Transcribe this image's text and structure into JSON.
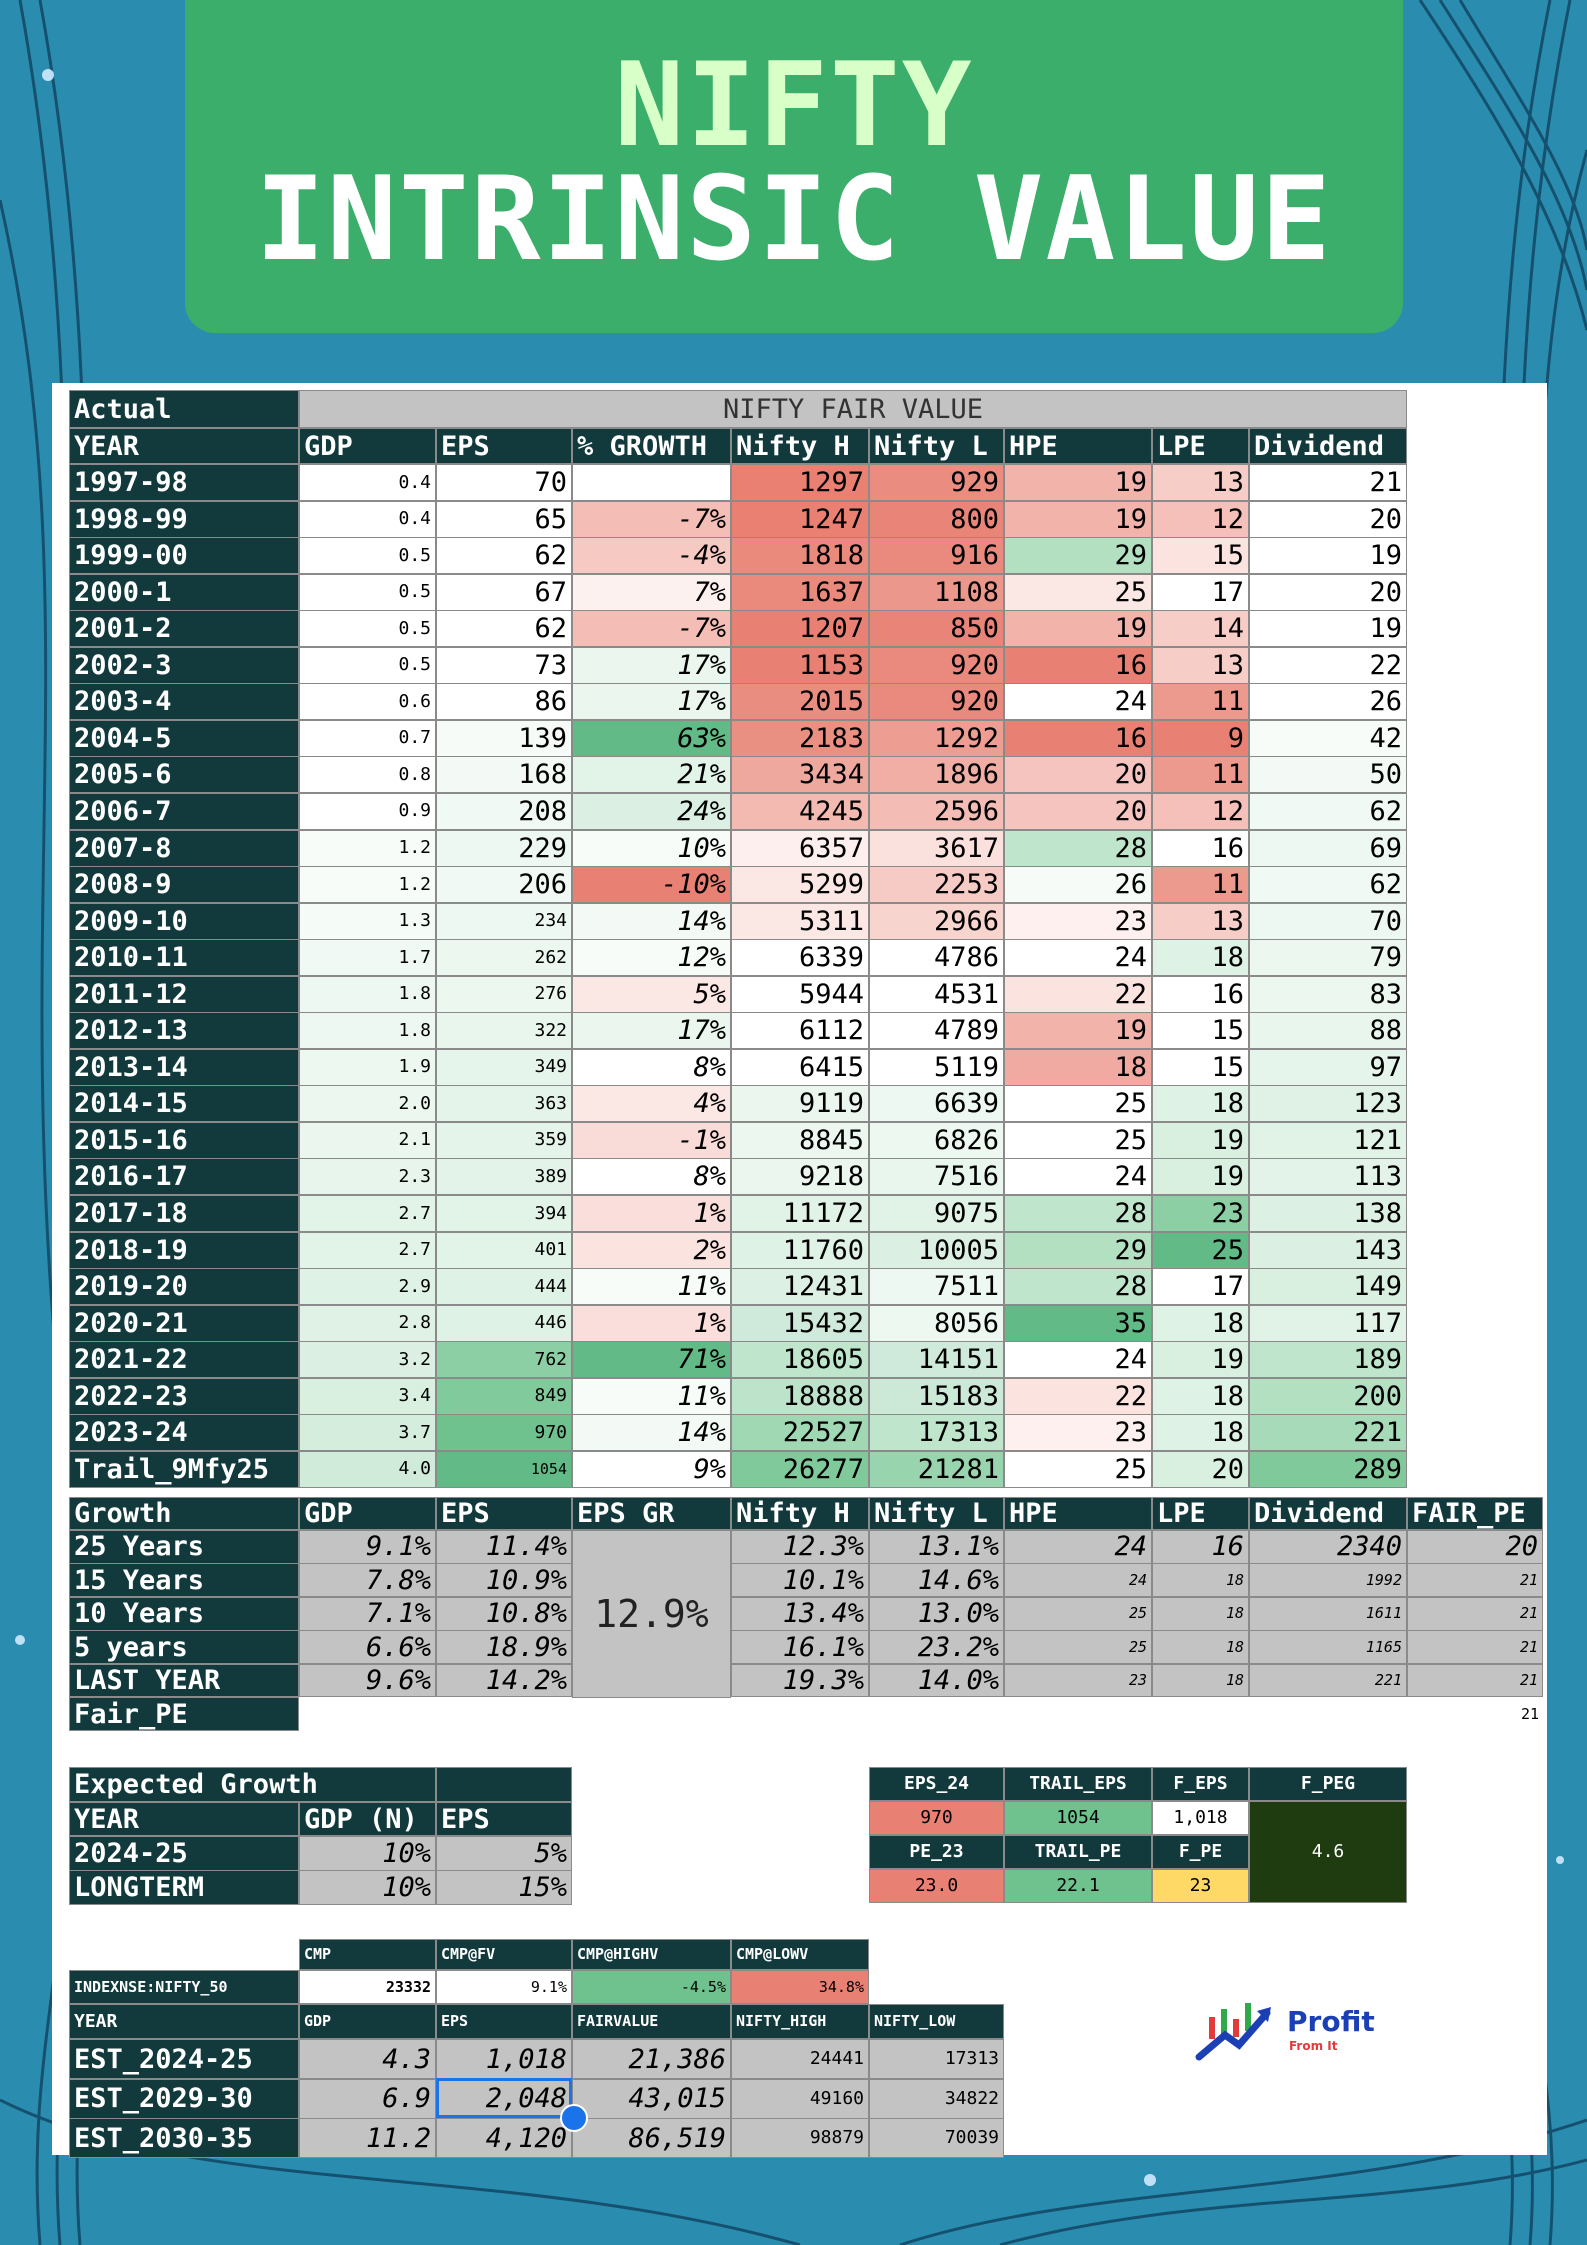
{
  "title": {
    "line1": "NIFTY",
    "line2": "INTRINSIC VALUE"
  },
  "main_table": {
    "corner": "Actual",
    "banner": "NIFTY FAIR VALUE",
    "headers": [
      "YEAR",
      "GDP",
      "EPS",
      "% GROWTH",
      "Nifty H",
      "Nifty L",
      "HPE",
      "LPE",
      "Dividend"
    ],
    "rows": [
      [
        "1997-98",
        "0.4",
        "70",
        "",
        "1297",
        "929",
        "19",
        "13",
        "21"
      ],
      [
        "1998-99",
        "0.4",
        "65",
        "-7%",
        "1247",
        "800",
        "19",
        "12",
        "20"
      ],
      [
        "1999-00",
        "0.5",
        "62",
        "-4%",
        "1818",
        "916",
        "29",
        "15",
        "19"
      ],
      [
        "2000-1",
        "0.5",
        "67",
        "7%",
        "1637",
        "1108",
        "25",
        "17",
        "20"
      ],
      [
        "2001-2",
        "0.5",
        "62",
        "-7%",
        "1207",
        "850",
        "19",
        "14",
        "19"
      ],
      [
        "2002-3",
        "0.5",
        "73",
        "17%",
        "1153",
        "920",
        "16",
        "13",
        "22"
      ],
      [
        "2003-4",
        "0.6",
        "86",
        "17%",
        "2015",
        "920",
        "24",
        "11",
        "26"
      ],
      [
        "2004-5",
        "0.7",
        "139",
        "63%",
        "2183",
        "1292",
        "16",
        "9",
        "42"
      ],
      [
        "2005-6",
        "0.8",
        "168",
        "21%",
        "3434",
        "1896",
        "20",
        "11",
        "50"
      ],
      [
        "2006-7",
        "0.9",
        "208",
        "24%",
        "4245",
        "2596",
        "20",
        "12",
        "62"
      ],
      [
        "2007-8",
        "1.2",
        "229",
        "10%",
        "6357",
        "3617",
        "28",
        "16",
        "69"
      ],
      [
        "2008-9",
        "1.2",
        "206",
        "-10%",
        "5299",
        "2253",
        "26",
        "11",
        "62"
      ],
      [
        "2009-10",
        "1.3",
        "234",
        "14%",
        "5311",
        "2966",
        "23",
        "13",
        "70"
      ],
      [
        "2010-11",
        "1.7",
        "262",
        "12%",
        "6339",
        "4786",
        "24",
        "18",
        "79"
      ],
      [
        "2011-12",
        "1.8",
        "276",
        "5%",
        "5944",
        "4531",
        "22",
        "16",
        "83"
      ],
      [
        "2012-13",
        "1.8",
        "322",
        "17%",
        "6112",
        "4789",
        "19",
        "15",
        "88"
      ],
      [
        "2013-14",
        "1.9",
        "349",
        "8%",
        "6415",
        "5119",
        "18",
        "15",
        "97"
      ],
      [
        "2014-15",
        "2.0",
        "363",
        "4%",
        "9119",
        "6639",
        "25",
        "18",
        "123"
      ],
      [
        "2015-16",
        "2.1",
        "359",
        "-1%",
        "8845",
        "6826",
        "25",
        "19",
        "121"
      ],
      [
        "2016-17",
        "2.3",
        "389",
        "8%",
        "9218",
        "7516",
        "24",
        "19",
        "113"
      ],
      [
        "2017-18",
        "2.7",
        "394",
        "1%",
        "11172",
        "9075",
        "28",
        "23",
        "138"
      ],
      [
        "2018-19",
        "2.7",
        "401",
        "2%",
        "11760",
        "10005",
        "29",
        "25",
        "143"
      ],
      [
        "2019-20",
        "2.9",
        "444",
        "11%",
        "12431",
        "7511",
        "28",
        "17",
        "149"
      ],
      [
        "2020-21",
        "2.8",
        "446",
        "1%",
        "15432",
        "8056",
        "35",
        "18",
        "117"
      ],
      [
        "2021-22",
        "3.2",
        "762",
        "71%",
        "18605",
        "14151",
        "24",
        "19",
        "189"
      ],
      [
        "2022-23",
        "3.4",
        "849",
        "11%",
        "18888",
        "15183",
        "22",
        "18",
        "200"
      ],
      [
        "2023-24",
        "3.7",
        "970",
        "14%",
        "22527",
        "17313",
        "23",
        "18",
        "221"
      ],
      [
        "Trail_9Mfy25",
        "4.0",
        "1054",
        "9%",
        "26277",
        "21281",
        "25",
        "20",
        "289"
      ]
    ],
    "colors": [
      [
        "#fff",
        "#fff",
        "#fff",
        "#e98072",
        "#ea8c80",
        "#f2b3ab",
        "#f7cdc7",
        "#fff"
      ],
      [
        "#fff",
        "#fff",
        "#f4bdb6",
        "#e98072",
        "#e98478",
        "#f2b3ab",
        "#f4c0b9",
        "#fff"
      ],
      [
        "#fff",
        "#fff",
        "#f6c9c3",
        "#ea8a7d",
        "#ea8a7e",
        "#b4e0c2",
        "#fbe3df",
        "#fff"
      ],
      [
        "#fff",
        "#fff",
        "#fdf1ef",
        "#ea8a7d",
        "#ec978b",
        "#fbe8e5",
        "#fff",
        "#fff"
      ],
      [
        "#fff",
        "#fff",
        "#f4bdb6",
        "#e98074",
        "#e98478",
        "#f2b3ab",
        "#f7cdc7",
        "#fff"
      ],
      [
        "#fff",
        "#fff",
        "#eaf6ee",
        "#e98074",
        "#ea8a7e",
        "#e98074",
        "#f7cdc7",
        "#fff"
      ],
      [
        "#fff",
        "#fff",
        "#eaf6ee",
        "#ea8d81",
        "#ea8a7e",
        "#fff",
        "#ec998e",
        "#fff"
      ],
      [
        "#fff",
        "#f6fbf8",
        "#62bb86",
        "#ea9083",
        "#ed9d92",
        "#e98074",
        "#e98074",
        "#f7fcf9"
      ],
      [
        "#fff",
        "#f3faf5",
        "#e2f3e8",
        "#efa89e",
        "#f0aea5",
        "#f6c4be",
        "#ec998e",
        "#f3faf5"
      ],
      [
        "#fff",
        "#f0f9f3",
        "#dbf0e2",
        "#f3bab2",
        "#f3bcb5",
        "#f6c4be",
        "#f4c0b9",
        "#f0f9f3"
      ],
      [
        "#f7fcf9",
        "#eef8f2",
        "#f7fcf9",
        "#fcefed",
        "#fbe1dd",
        "#bfe5cc",
        "#fff",
        "#eef8f2"
      ],
      [
        "#f7fcf9",
        "#f0f9f3",
        "#e98074",
        "#fbe7e4",
        "#f6cbc5",
        "#f6fbf8",
        "#ec998e",
        "#f0f9f3"
      ],
      [
        "#f5fbf7",
        "#eef8f2",
        "#f3faf5",
        "#fbe7e4",
        "#f8d4cf",
        "#fdf0ee",
        "#f7cdc7",
        "#eef8f2"
      ],
      [
        "#f0f9f3",
        "#ecf7f0",
        "#f7fcf9",
        "#fff",
        "#fff",
        "#fff",
        "#dff2e6",
        "#ecf7f0"
      ],
      [
        "#eef8f2",
        "#ebf7ef",
        "#fbe7e4",
        "#fff",
        "#fff",
        "#fbe3df",
        "#fff",
        "#ebf7ef"
      ],
      [
        "#eef8f2",
        "#e8f6ed",
        "#eaf6ee",
        "#fff",
        "#fff",
        "#f2b3ab",
        "#fff",
        "#e8f6ed"
      ],
      [
        "#edf8f1",
        "#e6f5eb",
        "#fff",
        "#fff",
        "#fff",
        "#f0aaa1",
        "#fff",
        "#e6f5eb"
      ],
      [
        "#ebf7ef",
        "#e5f4ea",
        "#fbe8e5",
        "#eaf6ee",
        "#eef8f2",
        "#fff",
        "#dff2e6",
        "#e0f2e6"
      ],
      [
        "#eaf6ee",
        "#e5f4ea",
        "#f9dcd8",
        "#ebf7ef",
        "#edf8f1",
        "#fff",
        "#d9efe0",
        "#e1f3e7"
      ],
      [
        "#e7f5ec",
        "#e3f3e9",
        "#fff",
        "#eaf6ee",
        "#e9f6ed",
        "#fff",
        "#d9efe0",
        "#e3f3e9"
      ],
      [
        "#e2f3e8",
        "#e2f3e8",
        "#fadedb",
        "#e1f3e7",
        "#e1f3e7",
        "#bfe5cc",
        "#8ccfa4",
        "#dcf0e3"
      ],
      [
        "#e2f3e8",
        "#e2f3e8",
        "#fbe3df",
        "#dff2e6",
        "#dbf0e2",
        "#b4e0c2",
        "#62bb86",
        "#dbf0e2"
      ],
      [
        "#dff2e6",
        "#dff2e6",
        "#f7fcf9",
        "#dcf0e3",
        "#eef8f2",
        "#bfe5cc",
        "#fff",
        "#d9efe0"
      ],
      [
        "#e0f2e6",
        "#dff2e6",
        "#fadedb",
        "#cfeadb",
        "#edf8f1",
        "#62bb86",
        "#dff2e6",
        "#e1f3e7"
      ],
      [
        "#dbf0e2",
        "#8ccfa4",
        "#62bb86",
        "#bfe5cc",
        "#cfeadb",
        "#fff",
        "#d9efe0",
        "#bfe5cc"
      ],
      [
        "#d9efe0",
        "#80ca9b",
        "#f7fcf9",
        "#bde4ca",
        "#cbe9d6",
        "#fbe3df",
        "#dff2e6",
        "#b4e0c2"
      ],
      [
        "#d5eddd",
        "#6fc28e",
        "#f3faf5",
        "#a1d8b4",
        "#bfe5cc",
        "#fdf0ee",
        "#dff2e6",
        "#a7dab9"
      ],
      [
        "#d0ebd9",
        "#62bb86",
        "#fff",
        "#7fc99a",
        "#98d4ad",
        "#fff",
        "#d9efe0",
        "#7fc99a"
      ]
    ]
  },
  "growth_table": {
    "headers": [
      "Growth",
      "GDP",
      "EPS",
      "EPS GR",
      "Nifty H",
      "Nifty L",
      "HPE",
      "LPE",
      "Dividend",
      "FAIR_PE"
    ],
    "eps_gr": "12.9%",
    "rows": [
      [
        "25 Years",
        "9.1%",
        "11.4%",
        "12.3%",
        "13.1%",
        "24",
        "16",
        "2340",
        "20"
      ],
      [
        "15 Years",
        "7.8%",
        "10.9%",
        "10.1%",
        "14.6%",
        "24",
        "18",
        "1992",
        "21"
      ],
      [
        "10 Years",
        "7.1%",
        "10.8%",
        "13.4%",
        "13.0%",
        "25",
        "18",
        "1611",
        "21"
      ],
      [
        "5 years",
        "6.6%",
        "18.9%",
        "16.1%",
        "23.2%",
        "25",
        "18",
        "1165",
        "21"
      ],
      [
        "LAST YEAR",
        "9.6%",
        "14.2%",
        "19.3%",
        "14.0%",
        "23",
        "18",
        "221",
        "21"
      ]
    ],
    "fair_pe_label": "Fair_PE",
    "fair_pe_value": "21"
  },
  "expected_growth": {
    "title": "Expected Growth",
    "headers": [
      "YEAR",
      "GDP (N)",
      "EPS"
    ],
    "rows": [
      [
        "2024-25",
        "10%",
        "5%"
      ],
      [
        "LONGTERM",
        "10%",
        "15%"
      ]
    ]
  },
  "eps_box": {
    "row1_headers": [
      "EPS_24",
      "TRAIL_EPS",
      "F_EPS"
    ],
    "row1_values": [
      "970",
      "1054",
      "1,018"
    ],
    "row2_headers": [
      "PE_23",
      "TRAIL_PE",
      "F_PE"
    ],
    "row2_values": [
      "23.0",
      "22.1",
      "23"
    ],
    "peg_label": "F_PEG",
    "peg_value": "4.6",
    "colors": {
      "eps24": "#e98074",
      "trail": "#6fc28e",
      "fpe": "#ffd966",
      "peg": "#1f3b10"
    }
  },
  "cmp_table": {
    "headers": [
      "CMP",
      "CMP@FV",
      "CMP@HIGHV",
      "CMP@LOWV"
    ],
    "index_label": "INDEXNSE:NIFTY_50",
    "values": [
      "23332",
      "9.1%",
      "-4.5%",
      "34.8%"
    ],
    "est_headers": [
      "YEAR",
      "GDP",
      "EPS",
      "FAIRVALUE",
      "NIFTY_HIGH",
      "NIFTY_LOW"
    ],
    "est_rows": [
      [
        "EST_2024-25",
        "4.3",
        "1,018",
        "21,386",
        "24441",
        "17313"
      ],
      [
        "EST_2029-30",
        "6.9",
        "2,048",
        "43,015",
        "49160",
        "34822"
      ],
      [
        "EST_2030-35",
        "11.2",
        "4,120",
        "86,519",
        "98879",
        "70039"
      ]
    ]
  },
  "logo": {
    "name": "Profit",
    "tagline": "From It"
  }
}
